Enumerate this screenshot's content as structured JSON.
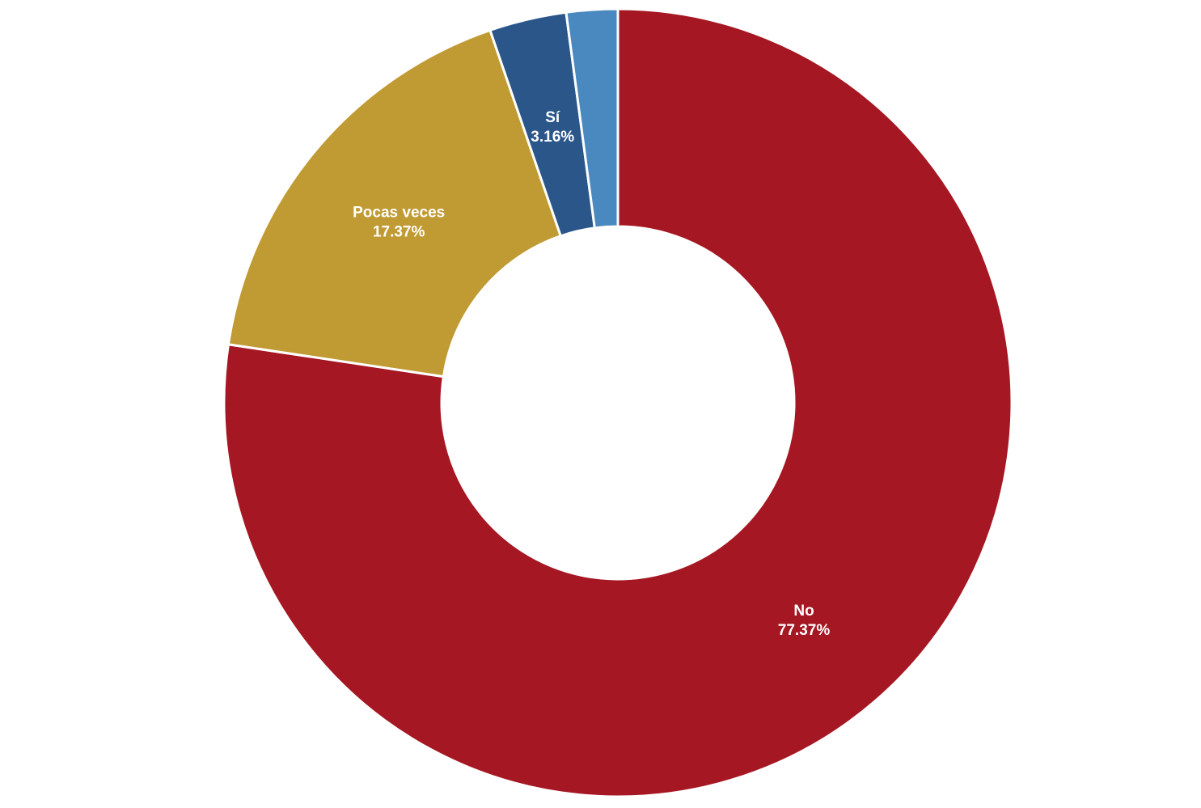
{
  "chart_data": {
    "type": "pie",
    "variant": "donut",
    "slices": [
      {
        "label": "No",
        "value": 77.37,
        "value_label": "77.37%",
        "color": "#a51722",
        "show_label": true
      },
      {
        "label": "Pocas veces",
        "value": 17.37,
        "value_label": "17.37%",
        "color": "#c09a33",
        "show_label": true
      },
      {
        "label": "Sí",
        "value": 3.16,
        "value_label": "3.16%",
        "color": "#2b568a",
        "show_label": true
      },
      {
        "value": 2.1,
        "color": "#4a89bf",
        "show_label": false
      }
    ],
    "start_angle": "top",
    "direction": "clockwise",
    "legend": "none"
  }
}
